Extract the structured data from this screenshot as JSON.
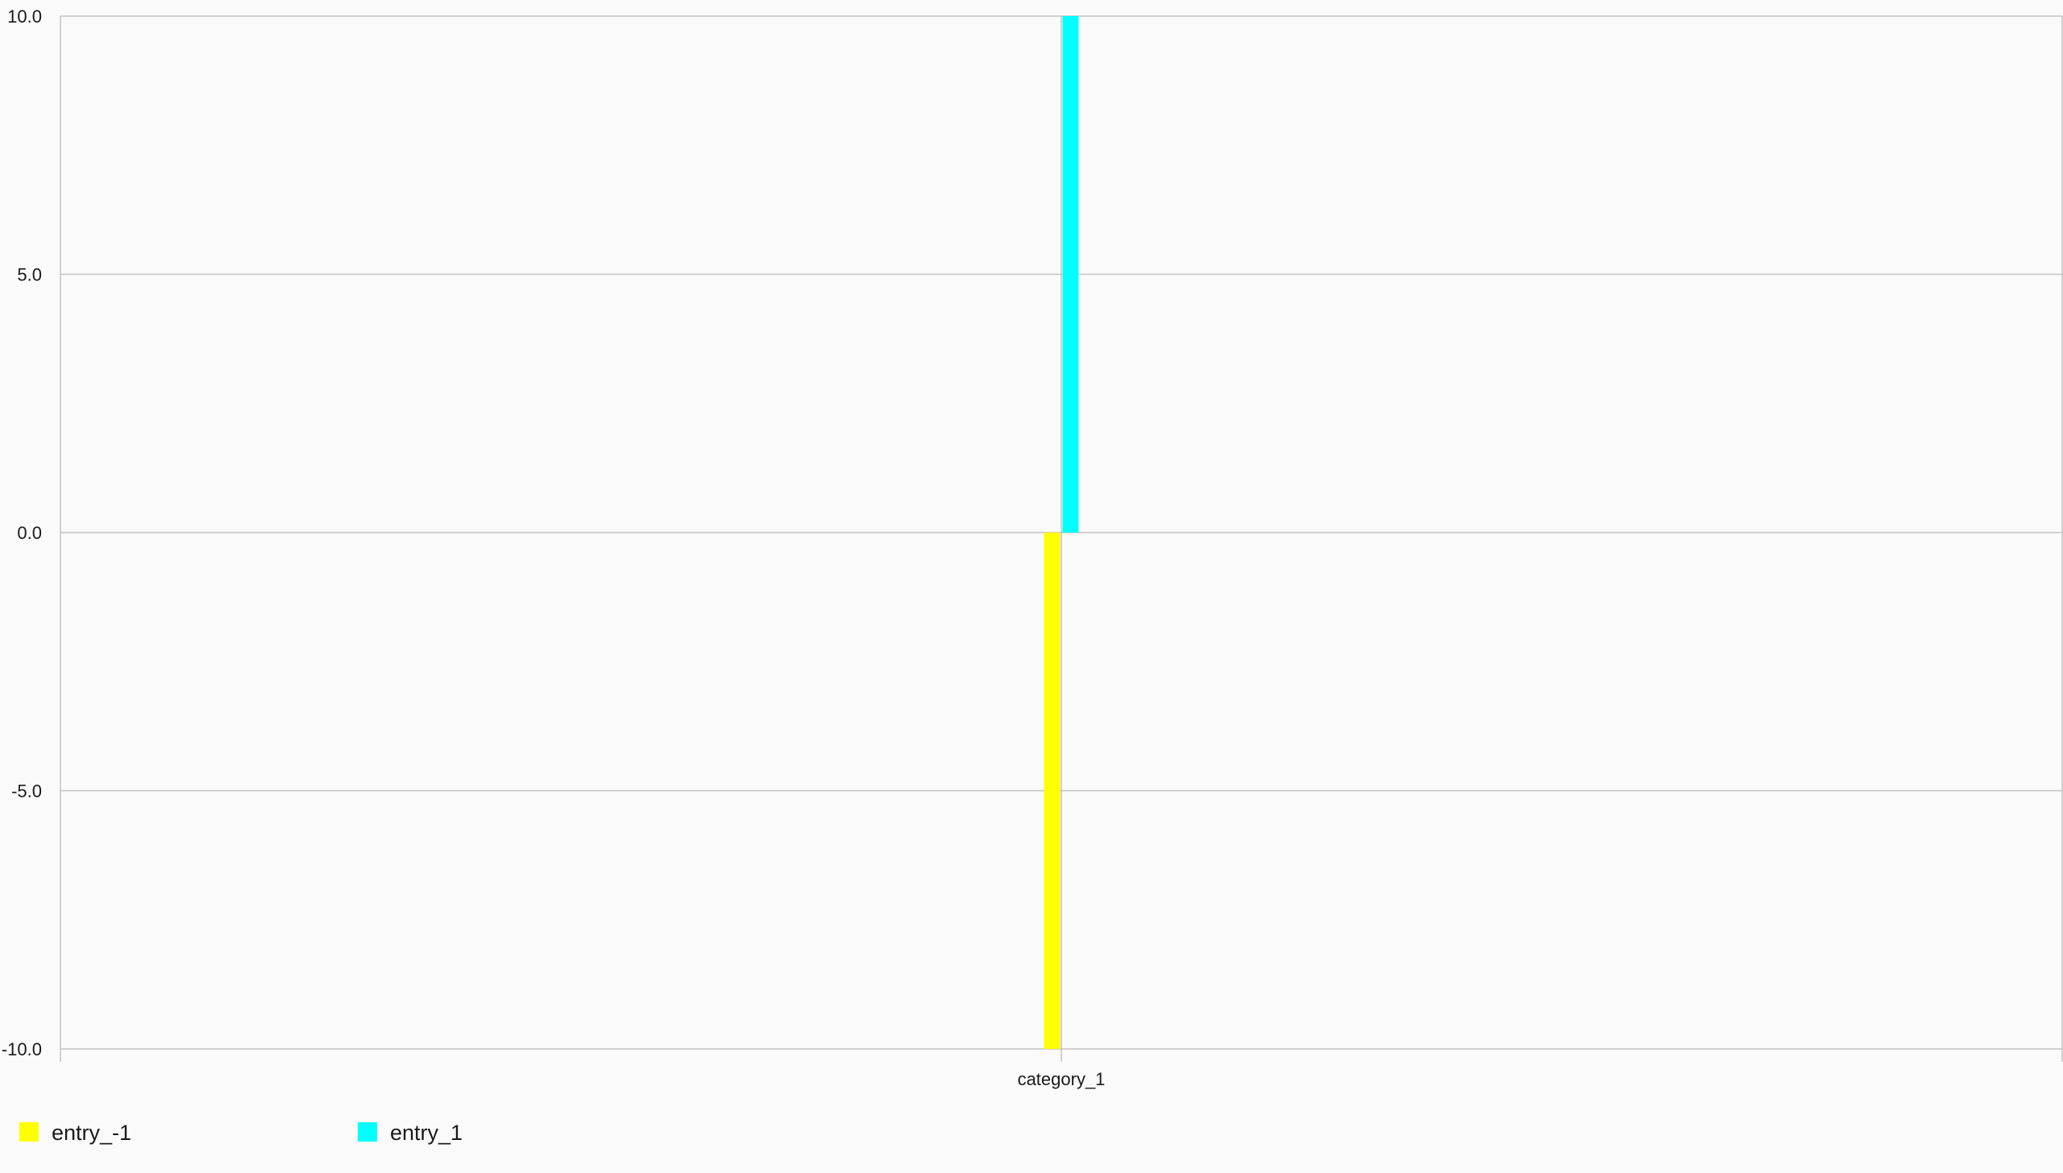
{
  "chart_data": {
    "type": "bar",
    "categories": [
      "category_1"
    ],
    "series": [
      {
        "name": "entry_-1",
        "values": [
          -10.0
        ],
        "color": "#ffff00"
      },
      {
        "name": "entry_1",
        "values": [
          10.0
        ],
        "color": "#00ffff"
      }
    ],
    "ylim": [
      -10.0,
      10.0
    ],
    "yticks": [
      "-10.0",
      "-5.0",
      "0.0",
      "5.0",
      "10.0"
    ],
    "grid": true,
    "legend_position": "bottom-left",
    "title": "",
    "xlabel": "",
    "ylabel": ""
  },
  "colors": {
    "background": "#fafafa",
    "grid": "#c2c2c2",
    "text": "#1a1a1a"
  }
}
